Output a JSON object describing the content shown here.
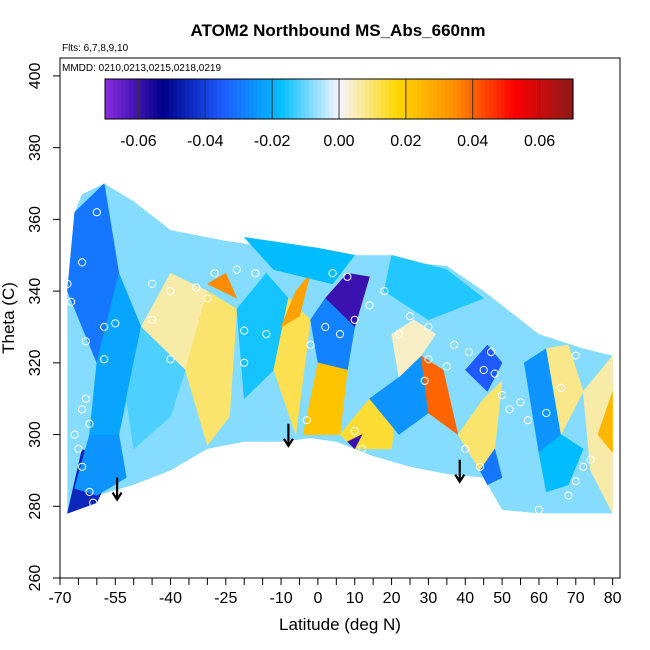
{
  "chart_data": {
    "type": "heatmap",
    "title": "ATOM2 Northbound MS_Abs_660nm",
    "annotations": [
      "Flts: 6,7,8,9,10",
      "MMDD: 0210,0213,0215,0218,0219"
    ],
    "xlabel": "Latitude (deg N)",
    "ylabel": "Theta (C)",
    "xlim": [
      -70,
      82
    ],
    "ylim": [
      260,
      405
    ],
    "x_ticks_labeled": [
      -70,
      -55,
      -40,
      -25,
      -10,
      0,
      10,
      20,
      30,
      40,
      50,
      60,
      70,
      80
    ],
    "x_ticks_minor": [
      -65,
      -60,
      -50,
      -45,
      -35,
      -30,
      -20,
      -15,
      -5,
      5,
      15,
      25,
      35,
      45,
      55,
      65,
      75
    ],
    "y_ticks": [
      260,
      280,
      300,
      320,
      340,
      360,
      380,
      400
    ],
    "colorbar": {
      "range": [
        -0.07,
        0.07
      ],
      "tick_labels": [
        "-0.06",
        "-0.04",
        "-0.02",
        "0.00",
        "0.02",
        "0.04",
        "0.06"
      ],
      "tick_values": [
        -0.06,
        -0.04,
        -0.02,
        0.0,
        0.02,
        0.04,
        0.06
      ],
      "colors": [
        "#8a2be2",
        "#00008b",
        "#1e5aff",
        "#00bfff",
        "#f5f5ff",
        "#ffd700",
        "#ff8c00",
        "#ff0000",
        "#8b1a1a"
      ]
    },
    "domain_outline": [
      [
        -68,
        278
      ],
      [
        -66,
        280
      ],
      [
        -60,
        283
      ],
      [
        -50,
        286
      ],
      [
        -40,
        290
      ],
      [
        -30,
        296
      ],
      [
        -20,
        298
      ],
      [
        -10,
        298
      ],
      [
        -2,
        299
      ],
      [
        5,
        298
      ],
      [
        15,
        294
      ],
      [
        25,
        291
      ],
      [
        35,
        289
      ],
      [
        45,
        288
      ],
      [
        50,
        279
      ],
      [
        60,
        278
      ],
      [
        80,
        278
      ],
      [
        80,
        322
      ],
      [
        72,
        324
      ],
      [
        60,
        328
      ],
      [
        45,
        340
      ],
      [
        35,
        347
      ],
      [
        25,
        348
      ],
      [
        20,
        350
      ],
      [
        10,
        350
      ],
      [
        -5,
        351
      ],
      [
        -25,
        354
      ],
      [
        -40,
        357
      ],
      [
        -50,
        365
      ],
      [
        -58,
        370
      ],
      [
        -64,
        367
      ],
      [
        -66,
        362
      ],
      [
        -68,
        340
      ]
    ],
    "field_patches": [
      {
        "poly": [
          [
            -68,
            278
          ],
          [
            -60,
            281
          ],
          [
            -56,
            290
          ],
          [
            -64,
            296
          ]
        ],
        "value": -0.045
      },
      {
        "poly": [
          [
            -68,
            340
          ],
          [
            -66,
            362
          ],
          [
            -58,
            370
          ],
          [
            -54,
            345
          ],
          [
            -60,
            320
          ]
        ],
        "value": -0.03
      },
      {
        "poly": [
          [
            -60,
            320
          ],
          [
            -54,
            345
          ],
          [
            -48,
            330
          ],
          [
            -54,
            300
          ],
          [
            -62,
            300
          ]
        ],
        "value": -0.022
      },
      {
        "poly": [
          [
            -62,
            300
          ],
          [
            -54,
            300
          ],
          [
            -52,
            288
          ],
          [
            -60,
            283
          ],
          [
            -66,
            285
          ]
        ],
        "value": -0.025
      },
      {
        "poly": [
          [
            -48,
            330
          ],
          [
            -40,
            345
          ],
          [
            -30,
            340
          ],
          [
            -36,
            318
          ]
        ],
        "value": 0.006
      },
      {
        "poly": [
          [
            -36,
            318
          ],
          [
            -30,
            340
          ],
          [
            -22,
            335
          ],
          [
            -24,
            305
          ],
          [
            -30,
            297
          ]
        ],
        "value": 0.01
      },
      {
        "poly": [
          [
            -30,
            342
          ],
          [
            -25,
            345
          ],
          [
            -22,
            338
          ]
        ],
        "value": 0.035
      },
      {
        "poly": [
          [
            -50,
            296
          ],
          [
            -40,
            305
          ],
          [
            -36,
            318
          ],
          [
            -48,
            330
          ],
          [
            -52,
            310
          ]
        ],
        "value": -0.012
      },
      {
        "poly": [
          [
            -22,
            335
          ],
          [
            -14,
            345
          ],
          [
            -8,
            338
          ],
          [
            -12,
            318
          ],
          [
            -20,
            310
          ]
        ],
        "value": -0.016
      },
      {
        "poly": [
          [
            -12,
            318
          ],
          [
            -8,
            338
          ],
          [
            -2,
            332
          ],
          [
            -6,
            300
          ]
        ],
        "value": 0.012
      },
      {
        "poly": [
          [
            -10,
            330
          ],
          [
            -6,
            340
          ],
          [
            -2,
            345
          ],
          [
            -5,
            333
          ]
        ],
        "value": 0.03
      },
      {
        "poly": [
          [
            2,
            338
          ],
          [
            8,
            345
          ],
          [
            14,
            344
          ],
          [
            10,
            330
          ]
        ],
        "value": -0.06
      },
      {
        "poly": [
          [
            -2,
            332
          ],
          [
            2,
            338
          ],
          [
            10,
            330
          ],
          [
            8,
            318
          ],
          [
            0,
            320
          ]
        ],
        "value": -0.028
      },
      {
        "poly": [
          [
            0,
            320
          ],
          [
            8,
            318
          ],
          [
            6,
            300
          ],
          [
            -4,
            300
          ]
        ],
        "value": 0.022
      },
      {
        "poly": [
          [
            6,
            300
          ],
          [
            14,
            310
          ],
          [
            22,
            316
          ],
          [
            20,
            296
          ],
          [
            10,
            296
          ]
        ],
        "value": 0.014
      },
      {
        "poly": [
          [
            8,
            298
          ],
          [
            12,
            300
          ],
          [
            10,
            296
          ]
        ],
        "value": -0.06
      },
      {
        "poly": [
          [
            14,
            310
          ],
          [
            22,
            316
          ],
          [
            28,
            322
          ],
          [
            30,
            306
          ],
          [
            22,
            300
          ]
        ],
        "value": -0.025
      },
      {
        "poly": [
          [
            28,
            322
          ],
          [
            34,
            318
          ],
          [
            38,
            300
          ],
          [
            30,
            306
          ]
        ],
        "value": 0.04
      },
      {
        "poly": [
          [
            38,
            300
          ],
          [
            45,
            310
          ],
          [
            50,
            315
          ],
          [
            48,
            296
          ],
          [
            44,
            290
          ]
        ],
        "value": 0.01
      },
      {
        "poly": [
          [
            44,
            290
          ],
          [
            48,
            296
          ],
          [
            50,
            288
          ],
          [
            46,
            286
          ]
        ],
        "value": -0.03
      },
      {
        "poly": [
          [
            40,
            318
          ],
          [
            46,
            325
          ],
          [
            50,
            320
          ],
          [
            46,
            312
          ]
        ],
        "value": -0.035
      },
      {
        "poly": [
          [
            56,
            320
          ],
          [
            62,
            324
          ],
          [
            66,
            300
          ],
          [
            60,
            295
          ]
        ],
        "value": -0.025
      },
      {
        "poly": [
          [
            62,
            324
          ],
          [
            68,
            325
          ],
          [
            72,
            312
          ],
          [
            66,
            300
          ]
        ],
        "value": 0.008
      },
      {
        "poly": [
          [
            60,
            295
          ],
          [
            66,
            300
          ],
          [
            72,
            296
          ],
          [
            68,
            286
          ],
          [
            62,
            284
          ]
        ],
        "value": -0.018
      },
      {
        "poly": [
          [
            72,
            312
          ],
          [
            80,
            322
          ],
          [
            80,
            278
          ],
          [
            74,
            290
          ]
        ],
        "value": 0.006
      },
      {
        "poly": [
          [
            76,
            300
          ],
          [
            80,
            312
          ],
          [
            80,
            295
          ]
        ],
        "value": 0.025
      },
      {
        "poly": [
          [
            -20,
            355
          ],
          [
            0,
            352
          ],
          [
            10,
            350
          ],
          [
            4,
            342
          ],
          [
            -12,
            346
          ]
        ],
        "value": -0.018
      },
      {
        "poly": [
          [
            20,
            350
          ],
          [
            35,
            346
          ],
          [
            45,
            338
          ],
          [
            30,
            332
          ],
          [
            18,
            340
          ]
        ],
        "value": -0.015
      },
      {
        "poly": [
          [
            20,
            328
          ],
          [
            26,
            332
          ],
          [
            32,
            328
          ],
          [
            28,
            322
          ],
          [
            22,
            316
          ]
        ],
        "value": 0.004
      }
    ],
    "arrows_at": [
      [
        -54.5,
        288
      ],
      [
        -8,
        303
      ],
      [
        38.5,
        293
      ]
    ],
    "observations": [
      [
        -65,
        369
      ],
      [
        -60,
        362
      ],
      [
        -64,
        348
      ],
      [
        -68,
        342
      ],
      [
        -67,
        337
      ],
      [
        -63,
        326
      ],
      [
        -58,
        330
      ],
      [
        -55,
        331
      ],
      [
        -58,
        321
      ],
      [
        -63,
        310
      ],
      [
        -64,
        307
      ],
      [
        -62,
        303
      ],
      [
        -66,
        300
      ],
      [
        -65,
        296
      ],
      [
        -64,
        291
      ],
      [
        -62,
        284
      ],
      [
        -61,
        281
      ],
      [
        -58,
        282
      ],
      [
        -45,
        332
      ],
      [
        -45,
        342
      ],
      [
        -40,
        340
      ],
      [
        -33,
        341
      ],
      [
        -30,
        338
      ],
      [
        -28,
        345
      ],
      [
        -22,
        346
      ],
      [
        -17,
        345
      ],
      [
        -20,
        329
      ],
      [
        -14,
        328
      ],
      [
        -2,
        325
      ],
      [
        2,
        330
      ],
      [
        6,
        328
      ],
      [
        10,
        332
      ],
      [
        4,
        345
      ],
      [
        8,
        344
      ],
      [
        14,
        336
      ],
      [
        18,
        340
      ],
      [
        22,
        328
      ],
      [
        25,
        333
      ],
      [
        30,
        330
      ],
      [
        30,
        321
      ],
      [
        37,
        325
      ],
      [
        41,
        323
      ],
      [
        45,
        318
      ],
      [
        47,
        323
      ],
      [
        48,
        317
      ],
      [
        50,
        311
      ],
      [
        52,
        307
      ],
      [
        55,
        309
      ],
      [
        57,
        304
      ],
      [
        62,
        306
      ],
      [
        66,
        313
      ],
      [
        70,
        322
      ],
      [
        72,
        291
      ],
      [
        70,
        287
      ],
      [
        74,
        293
      ],
      [
        68,
        283
      ],
      [
        60,
        279
      ],
      [
        35,
        319
      ],
      [
        29,
        315
      ],
      [
        40,
        296
      ],
      [
        44,
        291
      ],
      [
        12,
        296
      ],
      [
        10,
        301
      ],
      [
        -3,
        304
      ],
      [
        -40,
        321
      ],
      [
        -20,
        320
      ]
    ]
  }
}
